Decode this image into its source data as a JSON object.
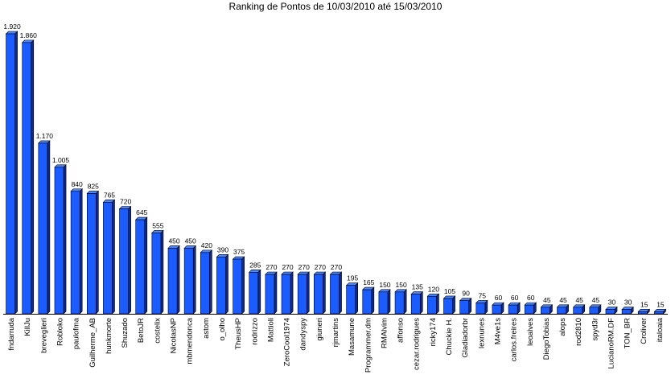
{
  "chart_data": {
    "type": "bar",
    "title": "Ranking de Pontos de 10/03/2010 até 15/03/2010",
    "xlabel": "",
    "ylabel": "",
    "ylim": [
      0,
      1920
    ],
    "grid": false,
    "legend": "none",
    "bar_color": "#1a5cff",
    "categories": [
      "fndarruda",
      "KillJu",
      "breveglieri",
      "Robloko",
      "paulofma",
      "Guilherme_AB",
      "hunkmorte",
      "Shuzado",
      "BetoJR",
      "costelix",
      "NicolasNP",
      "mbmendonca",
      "astom",
      "o_olho",
      "TheusHP",
      "rodrizzo",
      "Mattioli",
      "ZeroCool1974",
      "dandyspy",
      "giuneri",
      "rjmartins",
      "Masamune",
      "Programmer.dm",
      "RMAlvim",
      "affonso",
      "cezar.rodrigues",
      "ricky174",
      "Chuckie H.",
      "Gladiadorbr",
      "lexnunes",
      "M4ve1s",
      "carlos.freires",
      "leoalves",
      "DiegoTobias",
      "alops",
      "rod2810",
      "spyd3r",
      "LucianoRM.DF",
      "TON_BR",
      "Croliver",
      "italoaia"
    ],
    "values": [
      1920,
      1860,
      1170,
      1005,
      840,
      825,
      765,
      720,
      645,
      555,
      450,
      450,
      420,
      390,
      375,
      285,
      270,
      270,
      270,
      270,
      270,
      195,
      165,
      150,
      150,
      135,
      120,
      105,
      90,
      75,
      60,
      60,
      60,
      45,
      45,
      45,
      45,
      30,
      30,
      15,
      15
    ],
    "value_labels": [
      "1.920",
      "1.860",
      "1.170",
      "1.005",
      "840",
      "825",
      "765",
      "720",
      "645",
      "555",
      "450",
      "450",
      "420",
      "390",
      "375",
      "285",
      "270",
      "270",
      "270",
      "270",
      "270",
      "195",
      "165",
      "150",
      "150",
      "135",
      "120",
      "105",
      "90",
      "75",
      "60",
      "60",
      "60",
      "45",
      "45",
      "45",
      "45",
      "30",
      "30",
      "15",
      "15"
    ]
  }
}
